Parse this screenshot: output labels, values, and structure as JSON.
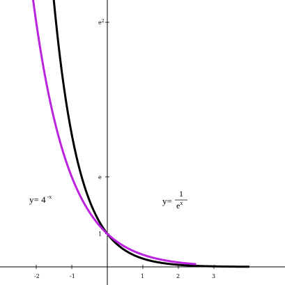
{
  "chart_data": {
    "type": "line",
    "xlim": [
      -3,
      5
    ],
    "ylim": [
      -0.2,
      7.9
    ],
    "x_ticks": [
      {
        "value": -2,
        "label": "-2"
      },
      {
        "value": -1,
        "label": "-1"
      },
      {
        "value": 1,
        "label": "1"
      },
      {
        "value": 2,
        "label": "2"
      },
      {
        "value": 3,
        "label": "3"
      }
    ],
    "y_ticks": [
      {
        "value": 1,
        "label": "1"
      },
      {
        "value": 2.718,
        "label": "e"
      },
      {
        "value": 7.389,
        "label": "e",
        "sup": "2"
      }
    ],
    "series": [
      {
        "color": "#000000",
        "function": "4^(-x)",
        "x_range": [
          -2.5,
          4
        ]
      },
      {
        "color": "#bb22dd",
        "function": "e^(-x)",
        "x_range": [
          -2.5,
          2.5
        ]
      }
    ],
    "annotations": {
      "left": {
        "prefix": "y= ",
        "base": "4",
        "exponent": "-x"
      },
      "right": {
        "prefix": "y=",
        "numerator": "1",
        "denominator": "e",
        "den_exponent": "x"
      }
    },
    "grid": false
  }
}
